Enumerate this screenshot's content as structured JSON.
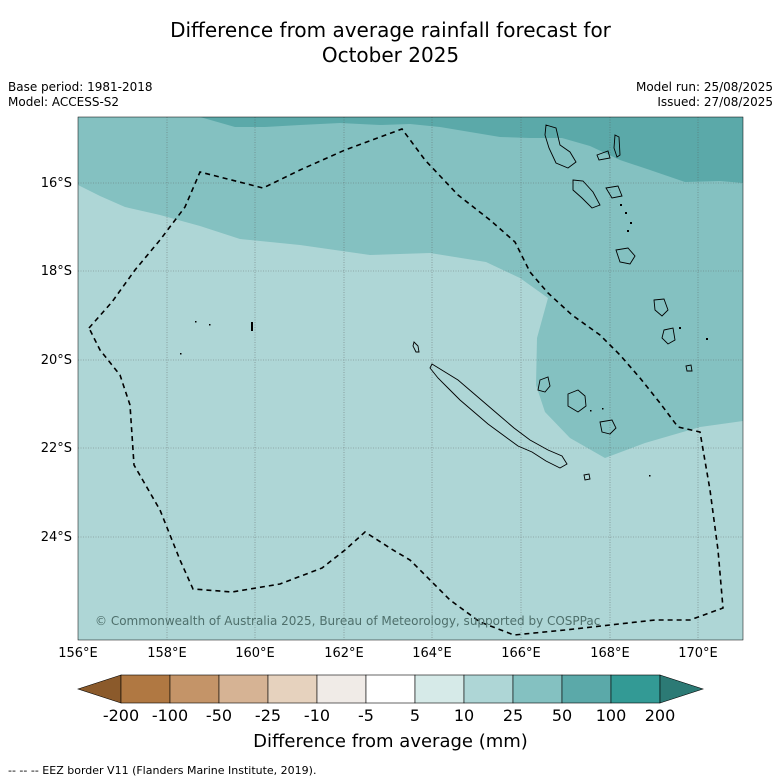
{
  "title_line1": "Difference from average rainfall forecast for",
  "title_line2": "October 2025",
  "meta_left": {
    "base_period": "Base period: 1981-2018",
    "model": "Model: ACCESS-S2"
  },
  "meta_right": {
    "model_run": "Model run: 25/08/2025",
    "issued": "Issued: 27/08/2025"
  },
  "copyright": "© Commonwealth of Australia 2025, Bureau of Meteorology, supported by COSPPac",
  "footer": "-- -- -- EEZ border V11 (Flanders Marine Institute, 2019).",
  "colors": {
    "band_10_25": "#aed6d6",
    "band_25_50": "#84c1c1",
    "band_50_100": "#5ba9a9",
    "coast": "#000000",
    "grid": "#555555"
  },
  "map": {
    "lat_labels": [
      "16°S",
      "18°S",
      "20°S",
      "22°S",
      "24°S"
    ],
    "lon_labels": [
      "156°E",
      "158°E",
      "160°E",
      "162°E",
      "164°E",
      "166°E",
      "168°E",
      "170°E"
    ],
    "extent": {
      "lon": [
        156,
        171
      ],
      "lat": [
        -14.7,
        -26.5
      ]
    }
  },
  "colorbar": {
    "title": "Difference from average (mm)",
    "labels": [
      "-200",
      "-100",
      "-50",
      "-25",
      "-10",
      "-5",
      "5",
      "10",
      "25",
      "50",
      "100",
      "200"
    ],
    "colors": [
      "#8b5a2b",
      "#b07842",
      "#c49468",
      "#d6b394",
      "#e6d2be",
      "#f0ebe7",
      "#ffffff",
      "#d6eae8",
      "#aed6d6",
      "#84c1c1",
      "#5ba9a9",
      "#339a95",
      "#2c7a75"
    ]
  }
}
